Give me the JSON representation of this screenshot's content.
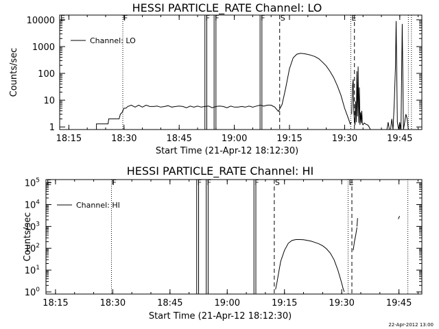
{
  "footer_date": "22-Apr-2012 13:00",
  "chart_data": [
    {
      "type": "line",
      "title": "HESSI PARTICLE_RATE Channel: LO",
      "xlabel": "Start Time (21-Apr-12 18:12:30)",
      "ylabel": "Counts/sec",
      "legend": "Channel: LO",
      "legend_position": "top-left",
      "y_scale": "log",
      "xlim": [
        "18:12:30",
        "19:51:00"
      ],
      "ylim": [
        0.8,
        15000
      ],
      "x_ticks": [
        "18:15",
        "18:30",
        "18:45",
        "19:00",
        "19:15",
        "19:30",
        "19:45"
      ],
      "y_ticks": [
        {
          "v": 1,
          "label": "1"
        },
        {
          "v": 10,
          "label": "10"
        },
        {
          "v": 100,
          "label": "100"
        },
        {
          "v": 1000,
          "label": "1000"
        },
        {
          "v": 10000,
          "label": "10000"
        }
      ],
      "markers": [
        {
          "label": "E",
          "x": "18:12:30",
          "style": "none"
        },
        {
          "label": "F",
          "x": "18:29:40",
          "style": "dotted"
        },
        {
          "label": "F",
          "x": "18:52:00",
          "style": "solid",
          "x2": "18:52:30"
        },
        {
          "label": "F",
          "x": "18:54:30",
          "style": "solid",
          "x2": "18:55:00"
        },
        {
          "label": "F",
          "x": "19:07:00",
          "style": "solid",
          "x2": "19:07:30"
        },
        {
          "label": "S",
          "x": "19:12:20",
          "style": "dashed"
        },
        {
          "label": "E",
          "x": "19:31:40",
          "style": "dotted"
        },
        {
          "label": "",
          "x": "19:32:40",
          "style": "dashed"
        },
        {
          "label": "",
          "x": "19:47:20",
          "style": "dotted"
        },
        {
          "label": "",
          "x": "19:48:10",
          "style": "dotted"
        }
      ],
      "series": [
        {
          "name": "Channel: LO",
          "segments": [
            {
              "x": [
                "18:22:30",
                "18:22:30",
                "18:23:00",
                "18:23:40",
                "18:24:20",
                "18:25:10",
                "18:25:40",
                "18:25:50",
                "18:26:30",
                "18:27:00",
                "18:28:00",
                "18:28:40",
                "18:29:00",
                "18:29:30",
                "18:30:00",
                "18:30:30",
                "18:31:00",
                "18:32:00",
                "18:33:00",
                "18:34:00",
                "18:35:00",
                "18:36:00",
                "18:37:00",
                "18:38:00",
                "18:39:00",
                "18:40:00",
                "18:41:00",
                "18:42:00",
                "18:43:00",
                "18:44:00",
                "18:45:00",
                "18:46:00",
                "18:47:00",
                "18:48:00",
                "18:49:00",
                "18:50:00",
                "18:51:00",
                "18:52:00",
                "18:53:00",
                "18:54:00",
                "18:55:00",
                "18:56:00",
                "18:57:00",
                "18:58:00",
                "18:59:00",
                "19:00:00",
                "19:01:00",
                "19:02:00",
                "19:03:00",
                "19:04:00",
                "19:05:00",
                "19:06:00",
                "19:07:00",
                "19:08:00",
                "19:09:00",
                "19:10:00",
                "19:11:00",
                "19:12:00",
                "19:13:00",
                "19:14:00",
                "19:15:00",
                "19:16:00",
                "19:17:00",
                "19:18:00",
                "19:19:00",
                "19:20:00",
                "19:21:00",
                "19:22:00",
                "19:23:00",
                "19:24:00",
                "19:25:00",
                "19:26:00",
                "19:27:00",
                "19:28:00",
                "19:29:00",
                "19:30:00",
                "19:30:40",
                "19:31:10",
                "19:31:30",
                "19:31:50"
              ],
              "y": [
                0.8,
                1.3,
                1.3,
                1.3,
                1.3,
                1.3,
                1.3,
                2,
                2,
                2,
                2,
                2,
                3,
                3.5,
                5,
                5,
                5.8,
                6.5,
                5.5,
                6.5,
                5.5,
                6.5,
                5.8,
                5.8,
                6,
                5.5,
                5.8,
                6.2,
                5.5,
                5.8,
                6,
                5.8,
                5.2,
                6,
                5.5,
                6,
                5.5,
                5.8,
                6,
                5.2,
                5.8,
                6,
                5.8,
                5.2,
                6,
                5.5,
                5.5,
                5.8,
                5.5,
                6,
                5.5,
                6,
                6.5,
                6,
                6.5,
                6.5,
                5.5,
                3.8,
                7,
                30,
                150,
                380,
                520,
                560,
                540,
                510,
                470,
                420,
                350,
                260,
                190,
                120,
                70,
                35,
                15,
                5,
                2.8,
                1.8,
                1.3,
                1.5
              ]
            },
            {
              "x": [
                "19:31:55",
                "19:32:10",
                "19:32:20",
                "19:32:30",
                "19:32:40",
                "19:32:50",
                "19:33:00",
                "19:33:10",
                "19:33:20",
                "19:33:30",
                "19:33:40",
                "19:33:50",
                "19:34:00",
                "19:34:10",
                "19:34:20",
                "19:34:30",
                "19:34:40",
                "19:34:50",
                "19:35:00",
                "19:35:20",
                "19:35:40",
                "19:36:10",
                "19:36:30",
                "19:37:00"
              ],
              "y": [
                3,
                35,
                60,
                4,
                1.5,
                1.2,
                9,
                1.5,
                120,
                2.5,
                180,
                1.4,
                30,
                1.2,
                3.5,
                1.4,
                4,
                1.3,
                1.2,
                1.4,
                1.3,
                1.2,
                1.1,
                0.8
              ]
            },
            {
              "x": [
                "19:41:30",
                "19:41:50",
                "19:42:10",
                "19:42:30",
                "19:42:50",
                "19:43:10",
                "19:43:30",
                "19:43:50",
                "19:44:00",
                "19:44:20",
                "19:44:40",
                "19:45:00",
                "19:45:20",
                "19:45:40",
                "19:46:00",
                "19:46:20",
                "19:46:40",
                "19:47:00",
                "19:47:20"
              ],
              "y": [
                0.8,
                1.5,
                0.8,
                0.8,
                2,
                0.8,
                8,
                200,
                9000,
                1.5,
                0.8,
                1.5,
                0.8,
                7000,
                0.8,
                1.5,
                3,
                2,
                0.8
              ]
            }
          ]
        }
      ]
    },
    {
      "type": "line",
      "title": "HESSI PARTICLE_RATE Channel: HI",
      "xlabel": "Start Time (21-Apr-12 18:12:30)",
      "ylabel": "Counts/sec",
      "legend": "Channel: HI",
      "legend_position": "top-left",
      "y_scale": "log",
      "xlim": [
        "18:12:30",
        "19:51:00"
      ],
      "ylim": [
        0.8,
        140000
      ],
      "x_ticks": [
        "18:15",
        "18:30",
        "18:45",
        "19:00",
        "19:15",
        "19:30",
        "19:45"
      ],
      "y_ticks": [
        {
          "v": 1,
          "base": "10",
          "exp": "0"
        },
        {
          "v": 10,
          "base": "10",
          "exp": "1"
        },
        {
          "v": 100,
          "base": "10",
          "exp": "2"
        },
        {
          "v": 1000,
          "base": "10",
          "exp": "3"
        },
        {
          "v": 10000,
          "base": "10",
          "exp": "4"
        },
        {
          "v": 100000,
          "base": "10",
          "exp": "5"
        }
      ],
      "markers": [
        {
          "label": "E",
          "x": "18:12:30",
          "style": "none"
        },
        {
          "label": "F",
          "x": "18:29:40",
          "style": "dotted"
        },
        {
          "label": "F",
          "x": "18:52:00",
          "style": "solid",
          "x2": "18:52:30"
        },
        {
          "label": "F",
          "x": "18:54:30",
          "style": "solid",
          "x2": "18:55:00"
        },
        {
          "label": "F",
          "x": "19:07:00",
          "style": "solid",
          "x2": "19:07:30"
        },
        {
          "label": "S",
          "x": "19:12:20",
          "style": "dashed"
        },
        {
          "label": "E",
          "x": "19:31:40",
          "style": "dotted"
        },
        {
          "label": "",
          "x": "19:32:40",
          "style": "dashed"
        },
        {
          "label": "",
          "x": "19:47:20",
          "style": "dotted"
        }
      ],
      "series": [
        {
          "name": "Channel: HI",
          "segments": [
            {
              "x": [
                "19:12:40",
                "19:13:00",
                "19:13:30",
                "19:14:00",
                "19:15:00",
                "19:16:00",
                "19:17:00",
                "19:18:00",
                "19:19:00",
                "19:20:00",
                "19:21:00",
                "19:22:00",
                "19:23:00",
                "19:24:00",
                "19:25:00",
                "19:26:00",
                "19:27:00",
                "19:28:00",
                "19:29:00",
                "19:29:30",
                "19:30:00",
                "19:30:20",
                "19:30:40"
              ],
              "y": [
                1.3,
                2.5,
                8,
                25,
                80,
                170,
                230,
                250,
                250,
                245,
                230,
                210,
                185,
                160,
                130,
                95,
                60,
                30,
                10,
                5,
                2.5,
                1.5,
                1
              ]
            },
            {
              "x": [
                "19:33:00",
                "19:33:20",
                "19:33:40",
                "19:34:00"
              ],
              "y": [
                80,
                200,
                400,
                900
              ]
            },
            {
              "x": [
                "19:34:00",
                "19:34:10"
              ],
              "y": [
                1000,
                2400
              ]
            },
            {
              "x": [
                "19:44:50",
                "19:45:10"
              ],
              "y": [
                2200,
                3000
              ]
            }
          ]
        }
      ]
    }
  ]
}
